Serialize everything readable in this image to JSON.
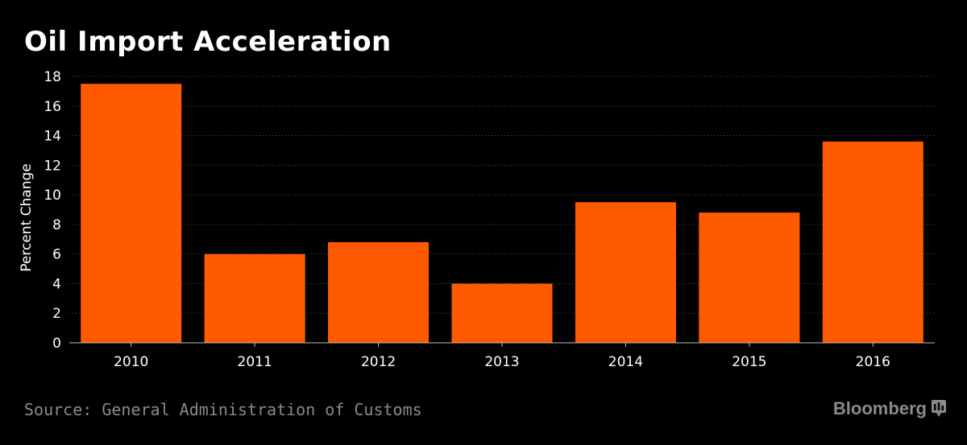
{
  "chart_data": {
    "type": "bar",
    "title": "Oil Import Acceleration",
    "xlabel": "",
    "ylabel": "Percent Change",
    "categories": [
      "2010",
      "2011",
      "2012",
      "2013",
      "2014",
      "2015",
      "2016"
    ],
    "values": [
      17.5,
      6.0,
      6.8,
      4.0,
      9.5,
      8.8,
      13.6
    ],
    "ylim": [
      0,
      18
    ],
    "yticks": [
      0,
      2,
      4,
      6,
      8,
      10,
      12,
      14,
      16,
      18
    ],
    "grid": true,
    "bar_color": "#ff5a00",
    "source": "Source: General Administration of Customs"
  },
  "branding": {
    "name": "Bloomberg",
    "icon": "bloomberg-terminal-icon"
  },
  "colors": {
    "background": "#000000",
    "text": "#ffffff",
    "muted": "#8a8a8a",
    "grid": "#555555"
  }
}
